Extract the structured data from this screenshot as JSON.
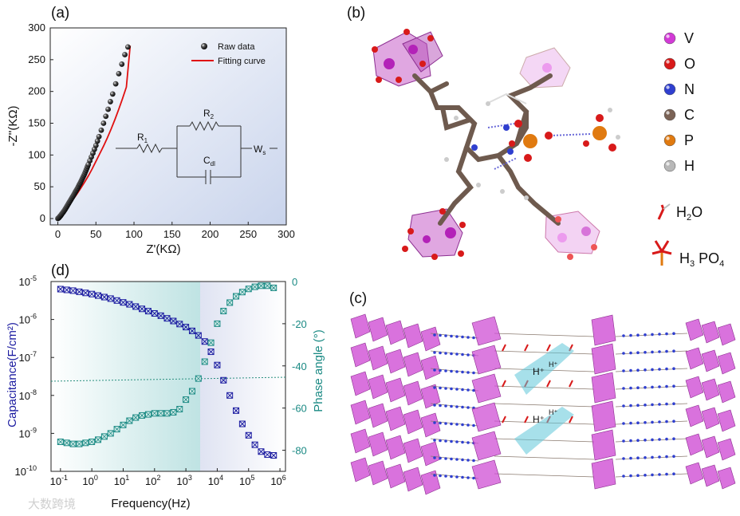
{
  "panels": {
    "a": "(a)",
    "b": "(b)",
    "c": "(c)",
    "d": "(d)"
  },
  "chart_data": [
    {
      "panel": "(a)",
      "type": "scatter",
      "xlabel": "Z'(KΩ)",
      "ylabel": "-Z''(KΩ)",
      "xlim": [
        -10,
        300
      ],
      "ylim": [
        -10,
        300
      ],
      "xticks": [
        "0",
        "50",
        "100",
        "150",
        "200",
        "250",
        "300"
      ],
      "yticks": [
        "0",
        "50",
        "100",
        "150",
        "200",
        "250",
        "300"
      ],
      "legend": {
        "raw": "Raw data",
        "fit": "Fitting curve"
      },
      "circuit": {
        "r1": "R",
        "r1_sub": "1",
        "r2": "R",
        "r2_sub": "2",
        "cdl": "C",
        "cdl_sub": "dl",
        "ws": "W",
        "ws_sub": "s"
      },
      "series": [
        {
          "name": "Raw data",
          "x": [
            0,
            0.5,
            1,
            1.5,
            2,
            2.5,
            3,
            3.5,
            4,
            4.5,
            5,
            6,
            7,
            8,
            9,
            10,
            11,
            12,
            13,
            14,
            15,
            16,
            17,
            18,
            19,
            20,
            21,
            22,
            23,
            24,
            25,
            26,
            27,
            28,
            29,
            30,
            31,
            32,
            33,
            34,
            35,
            36,
            37,
            38,
            39,
            40,
            42,
            44,
            46,
            48,
            50,
            52,
            54,
            57,
            60,
            63,
            66,
            69,
            72,
            76,
            80,
            84,
            88,
            92
          ],
          "y": [
            0,
            0.5,
            1,
            1.6,
            2.3,
            3,
            3.7,
            4.4,
            5.2,
            6,
            7,
            8.5,
            10,
            11.8,
            13.5,
            15.5,
            17.5,
            19.5,
            21.5,
            23.5,
            25.5,
            27.5,
            29.5,
            31.5,
            33.5,
            35.5,
            37.5,
            39.7,
            42,
            44,
            46,
            48,
            50.5,
            53,
            55,
            57.5,
            60,
            62.5,
            65,
            67.5,
            70,
            73,
            76,
            79,
            82,
            85,
            91,
            97,
            103,
            109,
            115,
            122,
            129,
            139,
            150,
            161,
            172,
            184,
            196,
            212,
            228,
            243,
            258,
            270
          ]
        },
        {
          "name": "Fitting curve",
          "x": [
            0,
            5,
            10,
            15,
            20,
            25,
            30,
            35,
            40,
            45,
            50,
            55,
            60,
            65,
            70,
            75,
            80,
            85,
            90,
            95
          ],
          "y": [
            0,
            6.5,
            14,
            22,
            30,
            38.5,
            47.5,
            57,
            67,
            78,
            90,
            102,
            114,
            127,
            141,
            156,
            172,
            189,
            207,
            272
          ]
        }
      ]
    },
    {
      "panel": "(d)",
      "type": "scatter",
      "xlabel": "Frequency(Hz)",
      "ylabel_left": "Capacitance(F/cm²)",
      "ylabel_right": "Phase angle (°)",
      "x_scale": "log",
      "xlim": [
        0.05,
        1500000
      ],
      "ylim_left": [
        1e-10,
        1e-05
      ],
      "ylim_right": [
        -90,
        0
      ],
      "xticks": [
        {
          "base": "10",
          "exp": "-1"
        },
        {
          "base": "10",
          "exp": "0"
        },
        {
          "base": "10",
          "exp": "1"
        },
        {
          "base": "10",
          "exp": "2"
        },
        {
          "base": "10",
          "exp": "3"
        },
        {
          "base": "10",
          "exp": "4"
        },
        {
          "base": "10",
          "exp": "5"
        },
        {
          "base": "10",
          "exp": "6"
        }
      ],
      "yticks_left": [
        {
          "base": "10",
          "exp": "-10"
        },
        {
          "base": "10",
          "exp": "-9"
        },
        {
          "base": "10",
          "exp": "-8"
        },
        {
          "base": "10",
          "exp": "-7"
        },
        {
          "base": "10",
          "exp": "-6"
        },
        {
          "base": "10",
          "exp": "-5"
        }
      ],
      "yticks_right": [
        "-80",
        "-60",
        "-40",
        "-20",
        "0"
      ],
      "colors": {
        "capacitance": "#1a1aa0",
        "phase": "#1b8a84"
      },
      "series": [
        {
          "name": "Capacitance",
          "x_log": [
            -1,
            -0.8,
            -0.6,
            -0.4,
            -0.2,
            0,
            0.2,
            0.4,
            0.6,
            0.8,
            1,
            1.2,
            1.4,
            1.6,
            1.8,
            2,
            2.2,
            2.4,
            2.6,
            2.8,
            3,
            3.2,
            3.4,
            3.6,
            3.8,
            4,
            4.2,
            4.4,
            4.6,
            4.8,
            5,
            5.2,
            5.4,
            5.6,
            5.8
          ],
          "y_log": [
            -5.2,
            -5.22,
            -5.24,
            -5.27,
            -5.3,
            -5.33,
            -5.37,
            -5.41,
            -5.45,
            -5.5,
            -5.55,
            -5.6,
            -5.66,
            -5.72,
            -5.78,
            -5.84,
            -5.9,
            -5.97,
            -6.04,
            -6.12,
            -6.2,
            -6.3,
            -6.42,
            -6.58,
            -6.85,
            -7.2,
            -7.6,
            -8.0,
            -8.4,
            -8.75,
            -9.05,
            -9.3,
            -9.48,
            -9.56,
            -9.58
          ]
        },
        {
          "name": "Phase angle",
          "x_log": [
            -1,
            -0.8,
            -0.6,
            -0.4,
            -0.2,
            0,
            0.2,
            0.4,
            0.6,
            0.8,
            1,
            1.2,
            1.4,
            1.6,
            1.8,
            2,
            2.2,
            2.4,
            2.6,
            2.8,
            3,
            3.2,
            3.4,
            3.6,
            3.8,
            4,
            4.2,
            4.4,
            4.6,
            4.8,
            5,
            5.2,
            5.4,
            5.6,
            5.8
          ],
          "y": [
            -76,
            -76.5,
            -77,
            -77,
            -76.5,
            -76,
            -75,
            -73.5,
            -72,
            -70,
            -68,
            -66,
            -64.5,
            -63.5,
            -63,
            -62.5,
            -62.5,
            -62.5,
            -62,
            -60.5,
            -56,
            -52,
            -46,
            -38,
            -29,
            -20,
            -14,
            -10,
            -7,
            -5,
            -3.5,
            -2.5,
            -2,
            -2,
            -3
          ]
        }
      ]
    }
  ],
  "structure_key": {
    "atoms": [
      {
        "label": "V",
        "color": "#d23ad6"
      },
      {
        "label": "O",
        "color": "#d81a1a"
      },
      {
        "label": "N",
        "color": "#2f3fcf"
      },
      {
        "label": "C",
        "color": "#7a6255"
      },
      {
        "label": "P",
        "color": "#e07a10"
      },
      {
        "label": "H",
        "color": "#b8b8b8"
      }
    ],
    "h2o": {
      "base": "H",
      "sub": "2",
      "tail": "O"
    },
    "h3po4": {
      "base": "H",
      "sub": "3",
      "tail": " PO",
      "sub2": "4"
    }
  },
  "panel_c": {
    "proton": "H⁺"
  },
  "watermark": "大数跨境"
}
